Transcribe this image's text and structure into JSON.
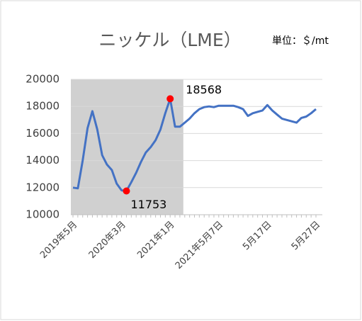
{
  "chart_data": {
    "type": "line",
    "title": "ニッケル（LME）",
    "subtitle": "単位：＄/mt",
    "categories": [
      "2019年5月",
      null,
      null,
      null,
      null,
      null,
      null,
      null,
      null,
      null,
      "2020年3月",
      null,
      null,
      null,
      null,
      null,
      null,
      null,
      null,
      null,
      "2021年1月",
      null,
      null,
      null,
      null,
      null,
      null,
      null,
      null,
      null,
      "2021年5月7日",
      null,
      null,
      null,
      null,
      null,
      null,
      null,
      null,
      null,
      "5月17日",
      null,
      null,
      null,
      null,
      null,
      null,
      null,
      null,
      null,
      "5月27日"
    ],
    "series": [
      {
        "name": "ニッケル",
        "color": "#4472c4",
        "values": [
          12000,
          11950,
          14000,
          16400,
          17650,
          16300,
          14400,
          13700,
          13300,
          12300,
          11800,
          11753,
          12400,
          13100,
          13900,
          14600,
          15000,
          15500,
          16300,
          17500,
          18568,
          16500,
          16500,
          16800,
          17100,
          17500,
          17800,
          17950,
          18000,
          17950,
          18050,
          18050,
          18050,
          18050,
          17950,
          17800,
          17300,
          17500,
          17600,
          17700,
          18100,
          17700,
          17400,
          17100,
          17000,
          16900,
          16800,
          17150,
          17250,
          17500,
          17800
        ]
      }
    ],
    "ylim": [
      10000,
      20000
    ],
    "yticks": [
      10000,
      12000,
      14000,
      16000,
      18000,
      20000
    ],
    "grid": true,
    "highlight_points": [
      11,
      20
    ],
    "highlight_color": "#ff0000",
    "shaded_range": [
      0,
      23
    ],
    "shade_color": "#d0d0d0"
  }
}
